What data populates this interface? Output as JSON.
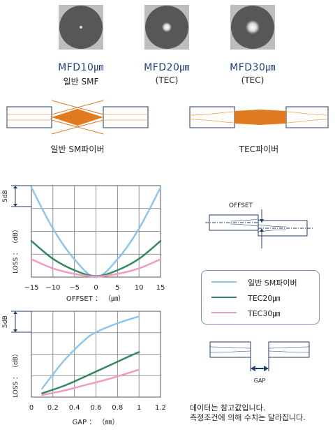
{
  "profiles": [
    {
      "mfd": "MFD10㎛",
      "type": "일반 SMF"
    },
    {
      "mfd": "MFD20㎛",
      "type": "(TEC)"
    },
    {
      "mfd": "MFD30㎛",
      "type": "(TEC)"
    }
  ],
  "fiber_diagrams": {
    "left_caption": "일반 SM파이버",
    "right_caption": "TEC파이버"
  },
  "chart_data": [
    {
      "type": "line",
      "x": [
        -15,
        -10,
        -5,
        0,
        5,
        10,
        15
      ],
      "xlabel": "OFFSET ： （㎛）",
      "ylabel": "LOSS ： （dB）",
      "scale_label": "5dB",
      "xlim": [
        -15,
        15
      ],
      "ylim": [
        0,
        20
      ],
      "series": [
        {
          "name": "일반 SM파이버",
          "color": "#8cc6ee",
          "values": [
            19.6,
            10.6,
            3.9,
            0,
            3.9,
            10.6,
            19.6
          ]
        },
        {
          "name": "TEC20㎛",
          "color": "#2f8a5c",
          "values": [
            7.9,
            4.0,
            1.5,
            0.2,
            1.5,
            4.0,
            7.9
          ]
        },
        {
          "name": "TEC30㎛",
          "color": "#f29ac4",
          "values": [
            3.9,
            1.9,
            0.7,
            0.1,
            0.7,
            1.9,
            3.9
          ]
        }
      ]
    },
    {
      "type": "line",
      "x": [
        0,
        0.2,
        0.4,
        0.6,
        0.8,
        1.0,
        1.2
      ],
      "xlabel": "GAP ： （㎜）",
      "ylabel": "LOSS ： （dB）",
      "scale_label": "5dB",
      "xlim": [
        0,
        1.2
      ],
      "ylim": [
        0,
        20
      ],
      "series": [
        {
          "name": "일반 SM파이버",
          "color": "#8cc6ee",
          "x": [
            0.1,
            0.3,
            0.5,
            0.6,
            0.8,
            1.0
          ],
          "values": [
            2.0,
            8.4,
            13.4,
            15.1,
            17.2,
            18.8
          ]
        },
        {
          "name": "TEC20㎛",
          "color": "#2f8a5c",
          "x": [
            0.1,
            0.3,
            0.5,
            0.7,
            0.9,
            1.0
          ],
          "values": [
            0.9,
            2.6,
            4.8,
            7.1,
            9.4,
            10.5
          ]
        },
        {
          "name": "TEC30㎛",
          "color": "#f29ac4",
          "x": [
            0.1,
            0.3,
            0.5,
            0.7,
            0.9,
            1.0
          ],
          "values": [
            0.5,
            1.5,
            2.8,
            4.1,
            5.6,
            6.4
          ]
        }
      ]
    }
  ],
  "offset_diagram": {
    "label": "OFFSET"
  },
  "gap_diagram": {
    "label": "GAP"
  },
  "legend": [
    {
      "label": "일반 SM파이버",
      "color": "#8cc6ee"
    },
    {
      "label": "TEC20㎛",
      "color": "#2f8a5c"
    },
    {
      "label": "TEC30㎛",
      "color": "#f29ac4"
    }
  ],
  "notes": [
    "데이터는 참고값입니다.",
    "측정조건에 의해 수치는 달라집니다."
  ]
}
